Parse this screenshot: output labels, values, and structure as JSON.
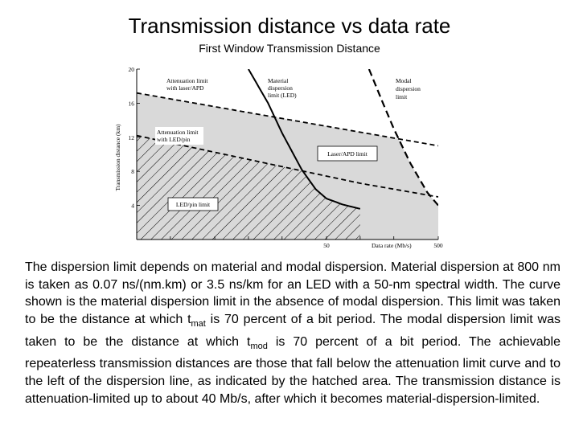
{
  "title": "Transmission distance vs data rate",
  "subtitle": "First Window Transmission Distance",
  "chart_data": {
    "type": "line",
    "x_scale": "log",
    "xlabel": "Data rate (Mb/s)",
    "ylabel": "Transmission distance (km)",
    "xlim": [
      1,
      500
    ],
    "ylim": [
      0,
      20
    ],
    "x_ticks": [
      1,
      2,
      5,
      10,
      20,
      50,
      100,
      200,
      500
    ],
    "x_tick_labels": [
      "",
      "",
      "",
      "",
      "",
      "50",
      "",
      "",
      "500"
    ],
    "y_ticks": [
      4,
      8,
      12,
      16,
      20
    ],
    "y_tick_labels": [
      "4",
      "8",
      "12",
      "16",
      "20"
    ],
    "series": [
      {
        "name": "Attenuation limit with laser/APD",
        "style": "dashed",
        "x": [
          1,
          10,
          100,
          500
        ],
        "y": [
          17.2,
          14.9,
          12.6,
          11.0
        ]
      },
      {
        "name": "Attenuation limit with LED/pin",
        "style": "dashed",
        "x": [
          1,
          10,
          100,
          500
        ],
        "y": [
          12.2,
          9.4,
          6.6,
          5.0
        ]
      },
      {
        "name": "Material dispersion limit (LED)",
        "style": "solid",
        "x": [
          10,
          15,
          20,
          30,
          40,
          50,
          70,
          100
        ],
        "y": [
          20,
          16,
          12.5,
          8.2,
          5.9,
          4.8,
          4.1,
          3.6
        ]
      },
      {
        "name": "Modal dispersion limit",
        "style": "dashed",
        "x": [
          120,
          160,
          200,
          280,
          400,
          500
        ],
        "y": [
          20,
          16,
          13,
          9,
          5.5,
          4
        ]
      }
    ],
    "annotations": [
      "Attenuation limit with laser/APD",
      "Material dispersion limit (LED)",
      "Modal dispersion limit",
      "Attenuation limit with LED/pin",
      "Laser/APD limit",
      "LED/pin limit"
    ],
    "regions": [
      {
        "name": "Laser/APD limit",
        "fill": "gray"
      },
      {
        "name": "LED/pin limit",
        "fill": "hatched"
      }
    ]
  },
  "labels": {
    "att_laser": [
      "Attenuation limit",
      "with laser/APD"
    ],
    "material": [
      "Material",
      "dispersion",
      "limit (LED)"
    ],
    "modal": [
      "Modal",
      "dispersion",
      "limit"
    ],
    "att_led": [
      "Attenuation limit",
      "with LED/pin"
    ],
    "laser_box": "Laser/APD limit",
    "led_box": "LED/pin limit"
  },
  "description": {
    "p1": "The dispersion limit depends on material and modal dispersion. Material dispersion at 800 nm is taken as 0.07 ns/(nm.km) or 3.5 ns/km for an LED with a 50-nm spectral width. The curve shown is the material dispersion limit in the absence of modal dispersion. This limit was taken to be the distance at which t",
    "sub1": "mat",
    "p2": " is 70 percent of a bit period. The modal dispersion limit was taken to be the distance at which t",
    "sub2": "mod",
    "p3": " is 70 percent of a bit period. The achievable repeaterless transmission distances are those that fall below the attenuation limit curve and to the left of the dispersion line, as indicated by the hatched area. The transmission distance is attenuation-limited up to about 40 Mb/s, after which it becomes material-dispersion-limited."
  },
  "colors": {
    "grey_region": "#d9d9d9",
    "axis": "#000000",
    "background": "#ffffff"
  }
}
